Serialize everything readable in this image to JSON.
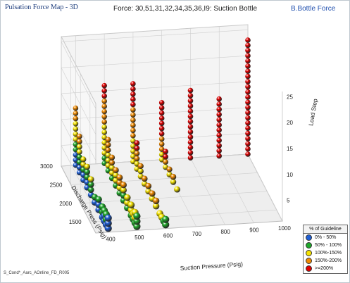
{
  "window_title": "Pulsation Force Map - 3D",
  "right_title": "B.Bottle Force",
  "footer_text": "S_Cond*_Aarc_AOnline_FD_R005",
  "chart_data": {
    "type": "scatter",
    "title": "Force: 30,51,31,32,34,35,36,I9: Suction Bottle",
    "xlabel": "Suction Pressure (Psig)",
    "ylabel": "Discharge Press (Psig)",
    "zlabel": "Load Step",
    "x_ticks": [
      "400",
      "500",
      "600",
      "700",
      "800",
      "900",
      "1000"
    ],
    "y_ticks": [
      "1500",
      "2000",
      "2500",
      "3000"
    ],
    "z_ticks": [
      "5",
      "10",
      "15",
      "20",
      "25"
    ],
    "xlim": [
      350,
      1000
    ],
    "ylim": [
      1200,
      3000
    ],
    "zlim": [
      1,
      26
    ],
    "grid": true,
    "legend_title": "% of Guideline",
    "legend_position": "bottom-right",
    "series": [
      {
        "name": "0% - 50%",
        "color": "#1f5fd6",
        "points": [
          [
            400,
            3000,
            1
          ],
          [
            400,
            3000,
            2
          ],
          [
            400,
            3000,
            3
          ],
          [
            400,
            2800,
            1
          ],
          [
            400,
            2800,
            2
          ],
          [
            400,
            2600,
            1
          ],
          [
            400,
            2600,
            2
          ],
          [
            400,
            2400,
            1
          ],
          [
            400,
            2400,
            2
          ],
          [
            400,
            2200,
            1
          ],
          [
            400,
            2000,
            1
          ],
          [
            400,
            1800,
            1
          ],
          [
            400,
            1800,
            2
          ],
          [
            400,
            1600,
            1
          ],
          [
            400,
            1500,
            1
          ],
          [
            400,
            1500,
            2
          ],
          [
            400,
            1400,
            1
          ],
          [
            400,
            1300,
            1
          ],
          [
            400,
            1300,
            2
          ],
          [
            400,
            1300,
            3
          ]
        ]
      },
      {
        "name": "50% - 100%",
        "color": "#1fa82a",
        "points": [
          [
            400,
            3000,
            4
          ],
          [
            400,
            3000,
            5
          ],
          [
            400,
            2800,
            3
          ],
          [
            400,
            2800,
            4
          ],
          [
            400,
            2600,
            3
          ],
          [
            400,
            2400,
            3
          ],
          [
            400,
            2400,
            4
          ],
          [
            400,
            2200,
            2
          ],
          [
            400,
            2200,
            3
          ],
          [
            400,
            2000,
            2
          ],
          [
            400,
            1800,
            3
          ],
          [
            400,
            1600,
            2
          ],
          [
            400,
            1600,
            3
          ],
          [
            400,
            1500,
            3
          ],
          [
            400,
            1400,
            2
          ],
          [
            400,
            1400,
            3
          ],
          [
            500,
            3000,
            1
          ],
          [
            500,
            3000,
            2
          ],
          [
            500,
            2800,
            1
          ],
          [
            500,
            2600,
            1
          ],
          [
            500,
            2400,
            1
          ],
          [
            500,
            2200,
            1
          ],
          [
            500,
            2000,
            1
          ],
          [
            500,
            2000,
            2
          ],
          [
            500,
            1800,
            1
          ],
          [
            500,
            1600,
            1
          ],
          [
            500,
            1500,
            1
          ],
          [
            500,
            1400,
            1
          ],
          [
            500,
            1300,
            1
          ],
          [
            500,
            1300,
            2
          ],
          [
            500,
            1300,
            3
          ],
          [
            600,
            1300,
            1
          ],
          [
            600,
            1300,
            2
          ],
          [
            600,
            1400,
            1
          ]
        ]
      },
      {
        "name": "100%-150%",
        "color": "#f5e300",
        "points": [
          [
            400,
            3000,
            6
          ],
          [
            400,
            3000,
            7
          ],
          [
            400,
            3000,
            8
          ],
          [
            400,
            3000,
            9
          ],
          [
            400,
            2800,
            5
          ],
          [
            400,
            2800,
            6
          ],
          [
            400,
            2600,
            4
          ],
          [
            400,
            2600,
            5
          ],
          [
            400,
            2400,
            5
          ],
          [
            400,
            2200,
            4
          ],
          [
            500,
            3000,
            3
          ],
          [
            500,
            3000,
            4
          ],
          [
            500,
            3000,
            5
          ],
          [
            500,
            3000,
            6
          ],
          [
            500,
            3000,
            7
          ],
          [
            500,
            3000,
            8
          ],
          [
            500,
            2800,
            2
          ],
          [
            500,
            2800,
            3
          ],
          [
            500,
            2800,
            4
          ],
          [
            500,
            2600,
            2
          ],
          [
            500,
            2600,
            3
          ],
          [
            500,
            2400,
            2
          ],
          [
            500,
            2400,
            3
          ],
          [
            500,
            2200,
            2
          ],
          [
            500,
            2000,
            3
          ],
          [
            500,
            1800,
            2
          ],
          [
            500,
            1800,
            3
          ],
          [
            500,
            1600,
            2
          ],
          [
            500,
            1600,
            3
          ],
          [
            500,
            1500,
            2
          ],
          [
            500,
            1400,
            2
          ],
          [
            500,
            1400,
            3
          ],
          [
            600,
            3000,
            1
          ],
          [
            600,
            3000,
            2
          ],
          [
            600,
            3000,
            3
          ],
          [
            600,
            3000,
            4
          ],
          [
            600,
            3000,
            5
          ],
          [
            600,
            2800,
            1
          ],
          [
            600,
            2800,
            2
          ],
          [
            600,
            2600,
            1
          ],
          [
            600,
            2600,
            2
          ],
          [
            600,
            2400,
            1
          ],
          [
            600,
            2200,
            1
          ],
          [
            600,
            2000,
            1
          ],
          [
            600,
            1800,
            1
          ],
          [
            600,
            1600,
            1
          ],
          [
            600,
            1500,
            1
          ],
          [
            700,
            3000,
            1
          ],
          [
            700,
            3000,
            2
          ],
          [
            700,
            2800,
            1
          ],
          [
            700,
            2600,
            1
          ],
          [
            700,
            2400,
            1
          ],
          [
            700,
            2200,
            1
          ]
        ]
      },
      {
        "name": "150%-200%",
        "color": "#f08a00",
        "points": [
          [
            400,
            3000,
            10
          ],
          [
            400,
            3000,
            11
          ],
          [
            400,
            3000,
            12
          ],
          [
            400,
            2800,
            7
          ],
          [
            400,
            2800,
            8
          ],
          [
            500,
            3000,
            9
          ],
          [
            500,
            3000,
            10
          ],
          [
            500,
            3000,
            11
          ],
          [
            500,
            3000,
            12
          ],
          [
            500,
            3000,
            13
          ],
          [
            500,
            2800,
            5
          ],
          [
            500,
            2800,
            6
          ],
          [
            500,
            2800,
            7
          ],
          [
            500,
            2600,
            4
          ],
          [
            500,
            2600,
            5
          ],
          [
            500,
            2400,
            4
          ],
          [
            500,
            2200,
            3
          ],
          [
            500,
            2200,
            4
          ],
          [
            500,
            2000,
            4
          ],
          [
            600,
            3000,
            6
          ],
          [
            600,
            3000,
            7
          ],
          [
            600,
            3000,
            8
          ],
          [
            600,
            3000,
            9
          ],
          [
            600,
            3000,
            10
          ],
          [
            600,
            3000,
            11
          ],
          [
            600,
            2800,
            3
          ],
          [
            600,
            2800,
            4
          ],
          [
            600,
            2600,
            3
          ],
          [
            600,
            2400,
            2
          ],
          [
            600,
            2200,
            2
          ],
          [
            600,
            2000,
            2
          ],
          [
            600,
            1800,
            2
          ],
          [
            700,
            3000,
            3
          ],
          [
            700,
            3000,
            4
          ],
          [
            700,
            3000,
            5
          ],
          [
            700,
            2800,
            2
          ],
          [
            700,
            2600,
            2
          ],
          [
            700,
            2400,
            2
          ]
        ]
      },
      {
        "name": ">=200%",
        "color": "#e10000",
        "points": [
          [
            500,
            3000,
            14
          ],
          [
            500,
            3000,
            15
          ],
          [
            500,
            3000,
            16
          ],
          [
            600,
            3000,
            12
          ],
          [
            600,
            3000,
            13
          ],
          [
            600,
            3000,
            14
          ],
          [
            600,
            3000,
            15
          ],
          [
            600,
            3000,
            16
          ],
          [
            600,
            2800,
            5
          ],
          [
            600,
            2800,
            6
          ],
          [
            700,
            3000,
            6
          ],
          [
            700,
            3000,
            7
          ],
          [
            700,
            3000,
            8
          ],
          [
            700,
            3000,
            9
          ],
          [
            700,
            3000,
            10
          ],
          [
            700,
            3000,
            11
          ],
          [
            700,
            3000,
            12
          ],
          [
            700,
            2800,
            3
          ],
          [
            700,
            2800,
            4
          ],
          [
            800,
            3000,
            1
          ],
          [
            800,
            3000,
            2
          ],
          [
            800,
            3000,
            3
          ],
          [
            800,
            3000,
            4
          ],
          [
            800,
            3000,
            5
          ],
          [
            800,
            3000,
            6
          ],
          [
            800,
            3000,
            7
          ],
          [
            800,
            3000,
            8
          ],
          [
            800,
            3000,
            9
          ],
          [
            800,
            3000,
            10
          ],
          [
            800,
            3000,
            11
          ],
          [
            800,
            3000,
            12
          ],
          [
            800,
            3000,
            13
          ],
          [
            800,
            3000,
            14
          ],
          [
            900,
            3000,
            1
          ],
          [
            900,
            3000,
            2
          ],
          [
            900,
            3000,
            3
          ],
          [
            900,
            3000,
            4
          ],
          [
            900,
            3000,
            5
          ],
          [
            900,
            3000,
            6
          ],
          [
            900,
            3000,
            7
          ],
          [
            900,
            3000,
            8
          ],
          [
            900,
            3000,
            9
          ],
          [
            900,
            3000,
            10
          ],
          [
            900,
            3000,
            11
          ],
          [
            900,
            3000,
            12
          ],
          [
            1000,
            3000,
            1
          ],
          [
            1000,
            3000,
            2
          ],
          [
            1000,
            3000,
            3
          ],
          [
            1000,
            3000,
            4
          ],
          [
            1000,
            3000,
            5
          ],
          [
            1000,
            3000,
            6
          ],
          [
            1000,
            3000,
            7
          ],
          [
            1000,
            3000,
            8
          ],
          [
            1000,
            3000,
            9
          ],
          [
            1000,
            3000,
            10
          ],
          [
            1000,
            3000,
            11
          ],
          [
            1000,
            3000,
            12
          ],
          [
            1000,
            3000,
            13
          ],
          [
            1000,
            3000,
            14
          ],
          [
            1000,
            3000,
            15
          ],
          [
            1000,
            3000,
            16
          ],
          [
            1000,
            3000,
            17
          ],
          [
            1000,
            3000,
            18
          ],
          [
            1000,
            3000,
            19
          ],
          [
            1000,
            3000,
            20
          ],
          [
            1000,
            3000,
            21
          ],
          [
            1000,
            3000,
            22
          ],
          [
            1000,
            3000,
            23
          ]
        ]
      }
    ]
  }
}
